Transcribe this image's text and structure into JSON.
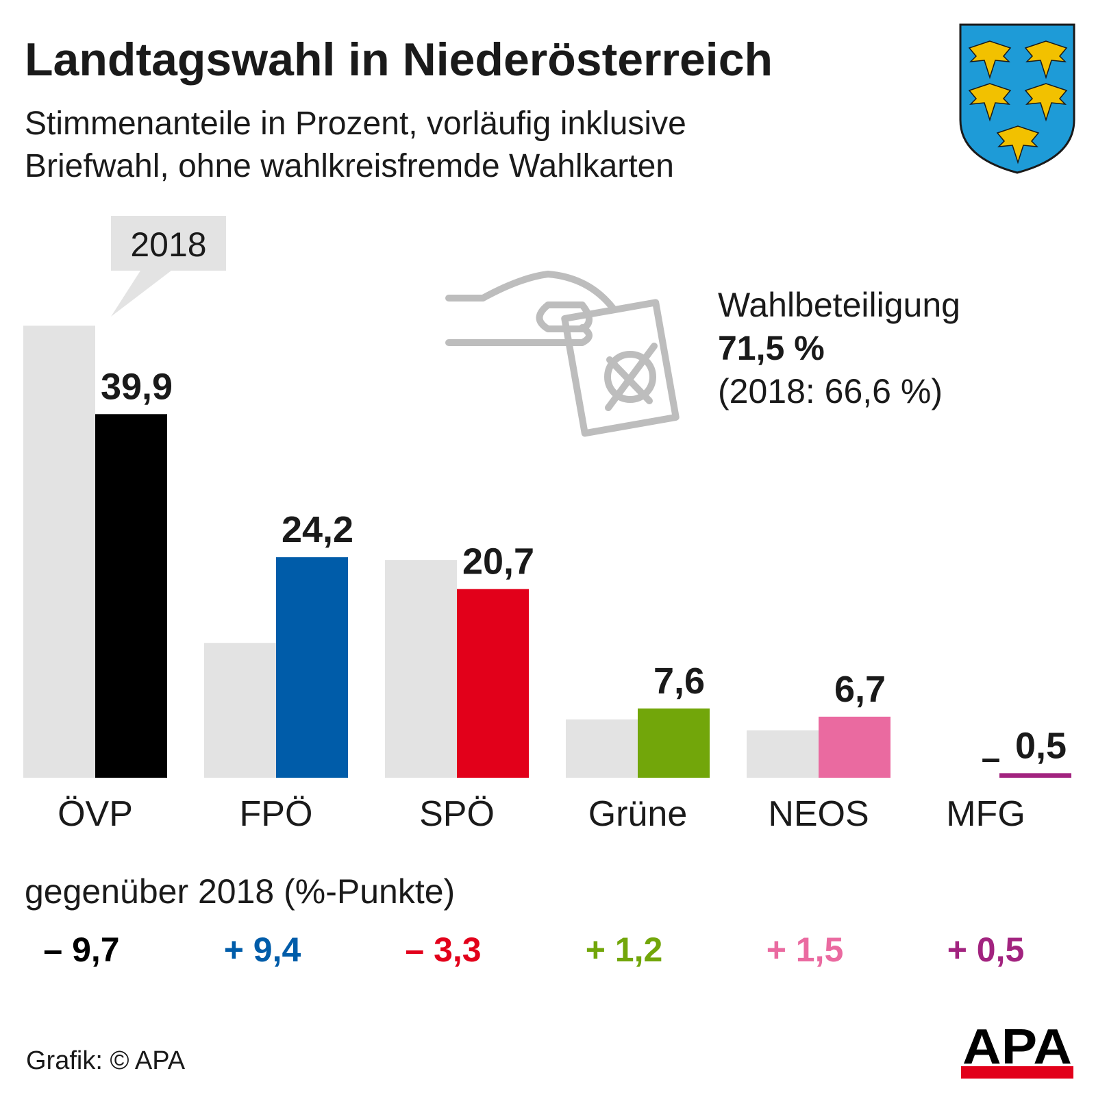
{
  "header": {
    "title": "Landtagswahl in Niederösterreich",
    "subtitle_line1": "Stimmenanteile in Prozent, vorläufig inklusive",
    "subtitle_line2": "Briefwahl, ohne wahlkreisfremde Wahlkarten"
  },
  "turnout": {
    "label": "Wahlbeteiligung",
    "value": "71,5 %",
    "previous": "(2018: 66,6 %)"
  },
  "chart_data": {
    "type": "bar",
    "categories": [
      "ÖVP",
      "FPÖ",
      "SPÖ",
      "Grüne",
      "NEOS",
      "MFG"
    ],
    "series": [
      {
        "name": "2018",
        "values": [
          49.6,
          14.8,
          23.9,
          6.4,
          5.2,
          null
        ],
        "color": "#e3e3e3"
      },
      {
        "values": [
          39.9,
          24.2,
          20.7,
          7.6,
          6.7,
          0.5
        ],
        "labels": [
          "39,9",
          "24,2",
          "20,7",
          "7,6",
          "6,7",
          "0,5"
        ]
      }
    ],
    "party_colors": [
      "#000000",
      "#005ca9",
      "#e2001a",
      "#72a60a",
      "#ea6aa0",
      "#a2237f"
    ],
    "missing_label": "–",
    "legend_callout": "2018",
    "change_title": "gegenüber 2018 (%-Punkte)",
    "changes": [
      "– 9,7",
      "+ 9,4",
      "– 3,3",
      "+ 1,2",
      "+ 1,5",
      "+ 0,5"
    ],
    "ylim": [
      0,
      50
    ]
  },
  "footer": {
    "credit": "Grafik: © APA",
    "logo": "APA"
  }
}
